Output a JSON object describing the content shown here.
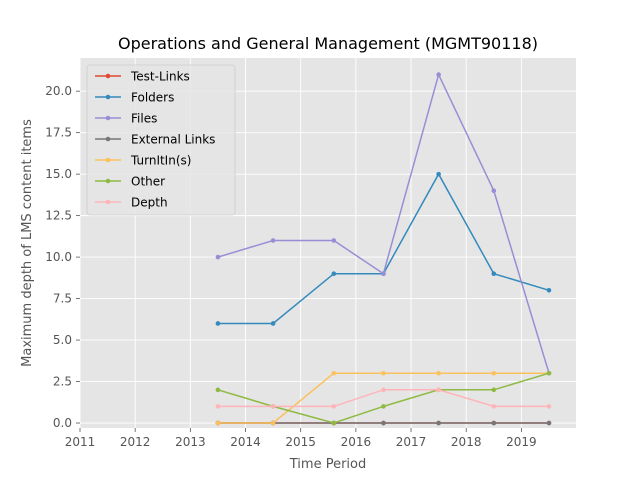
{
  "chart_data": {
    "type": "line",
    "title": "Operations and General Management (MGMT90118)",
    "xlabel": "Time Period",
    "ylabel": "Maximum depth of LMS content items",
    "xlim": [
      2011.0,
      2019.99
    ],
    "ylim": [
      -0.3,
      22.0
    ],
    "xticks": [
      2011,
      2012,
      2013,
      2014,
      2015,
      2016,
      2017,
      2018,
      2019
    ],
    "yticks": [
      0.0,
      2.5,
      5.0,
      7.5,
      10.0,
      12.5,
      15.0,
      17.5,
      20.0
    ],
    "ytick_labels": [
      "0.0",
      "2.5",
      "5.0",
      "7.5",
      "10.0",
      "12.5",
      "15.0",
      "17.5",
      "20.0"
    ],
    "grid": true,
    "legend_position": "upper-left",
    "x": [
      2013.5,
      2014.5,
      2015.6,
      2016.5,
      2017.5,
      2018.5,
      2019.5
    ],
    "series": [
      {
        "name": "Test-Links",
        "color": "#E24A33",
        "values": [
          0,
          0,
          0,
          0,
          0,
          0,
          0
        ]
      },
      {
        "name": "Folders",
        "color": "#348ABD",
        "values": [
          6,
          6,
          9,
          9,
          15,
          9,
          8
        ]
      },
      {
        "name": "Files",
        "color": "#988ED5",
        "values": [
          10,
          11,
          11,
          9,
          21,
          14,
          3
        ]
      },
      {
        "name": "External Links",
        "color": "#777777",
        "values": [
          0,
          0,
          0,
          0,
          0,
          0,
          0
        ]
      },
      {
        "name": "TurnItIn(s)",
        "color": "#FBC15E",
        "values": [
          0,
          0,
          3,
          3,
          3,
          3,
          3
        ]
      },
      {
        "name": "Other",
        "color": "#8EBA42",
        "values": [
          2,
          1,
          0,
          1,
          2,
          2,
          3
        ]
      },
      {
        "name": "Depth",
        "color": "#FFB5B8",
        "values": [
          1,
          1,
          1,
          2,
          2,
          1,
          1
        ]
      }
    ]
  }
}
